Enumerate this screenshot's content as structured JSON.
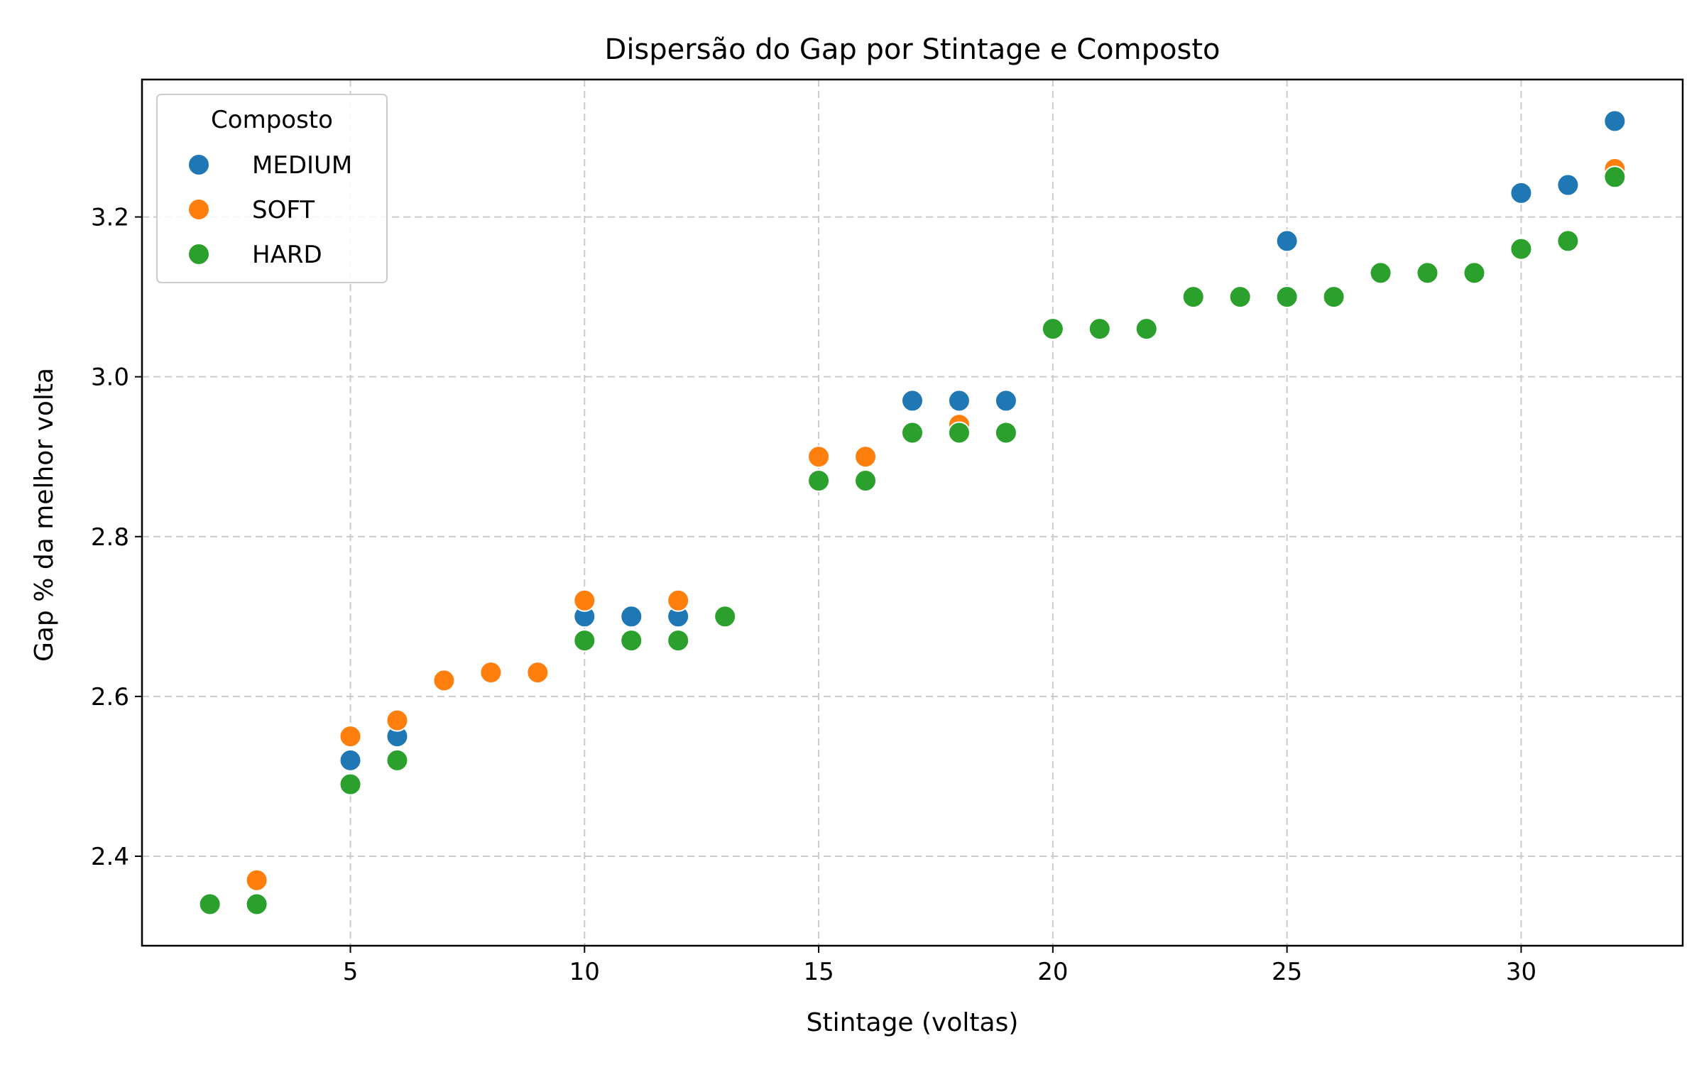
{
  "chart_data": {
    "type": "scatter",
    "title": "Dispersão do Gap por Stintage e Composto",
    "xlabel": "Stintage (voltas)",
    "ylabel": "Gap % da melhor volta",
    "xlim": [
      0.55,
      33.45
    ],
    "ylim": [
      2.288,
      3.372
    ],
    "xticks": [
      5,
      10,
      15,
      20,
      25,
      30
    ],
    "yticks": [
      2.4,
      2.6,
      2.8,
      3.0,
      3.2
    ],
    "ytick_labels": [
      "2.4",
      "2.6",
      "2.8",
      "3.0",
      "3.2"
    ],
    "grid": true,
    "legend": {
      "title": "Composto",
      "placement": "top-left"
    },
    "series": [
      {
        "name": "MEDIUM",
        "color": "#1f77b4",
        "points": [
          [
            5,
            2.52
          ],
          [
            6,
            2.55
          ],
          [
            10,
            2.7
          ],
          [
            11,
            2.7
          ],
          [
            12,
            2.7
          ],
          [
            17,
            2.97
          ],
          [
            18,
            2.97
          ],
          [
            19,
            2.97
          ],
          [
            25,
            3.17
          ],
          [
            30,
            3.23
          ],
          [
            31,
            3.24
          ],
          [
            32,
            3.32
          ]
        ]
      },
      {
        "name": "SOFT",
        "color": "#ff7f0e",
        "points": [
          [
            3,
            2.37
          ],
          [
            5,
            2.55
          ],
          [
            6,
            2.57
          ],
          [
            7,
            2.62
          ],
          [
            8,
            2.63
          ],
          [
            9,
            2.63
          ],
          [
            10,
            2.72
          ],
          [
            12,
            2.72
          ],
          [
            15,
            2.9
          ],
          [
            16,
            2.9
          ],
          [
            18,
            2.94
          ],
          [
            32,
            3.26
          ]
        ]
      },
      {
        "name": "HARD",
        "color": "#2ca02c",
        "points": [
          [
            2,
            2.34
          ],
          [
            3,
            2.34
          ],
          [
            5,
            2.49
          ],
          [
            6,
            2.52
          ],
          [
            10,
            2.67
          ],
          [
            11,
            2.67
          ],
          [
            12,
            2.67
          ],
          [
            13,
            2.7
          ],
          [
            15,
            2.87
          ],
          [
            16,
            2.87
          ],
          [
            17,
            2.93
          ],
          [
            18,
            2.93
          ],
          [
            19,
            2.93
          ],
          [
            20,
            3.06
          ],
          [
            21,
            3.06
          ],
          [
            22,
            3.06
          ],
          [
            23,
            3.1
          ],
          [
            24,
            3.1
          ],
          [
            25,
            3.1
          ],
          [
            26,
            3.1
          ],
          [
            27,
            3.13
          ],
          [
            28,
            3.13
          ],
          [
            29,
            3.13
          ],
          [
            30,
            3.16
          ],
          [
            31,
            3.17
          ],
          [
            32,
            3.25
          ]
        ]
      }
    ]
  }
}
